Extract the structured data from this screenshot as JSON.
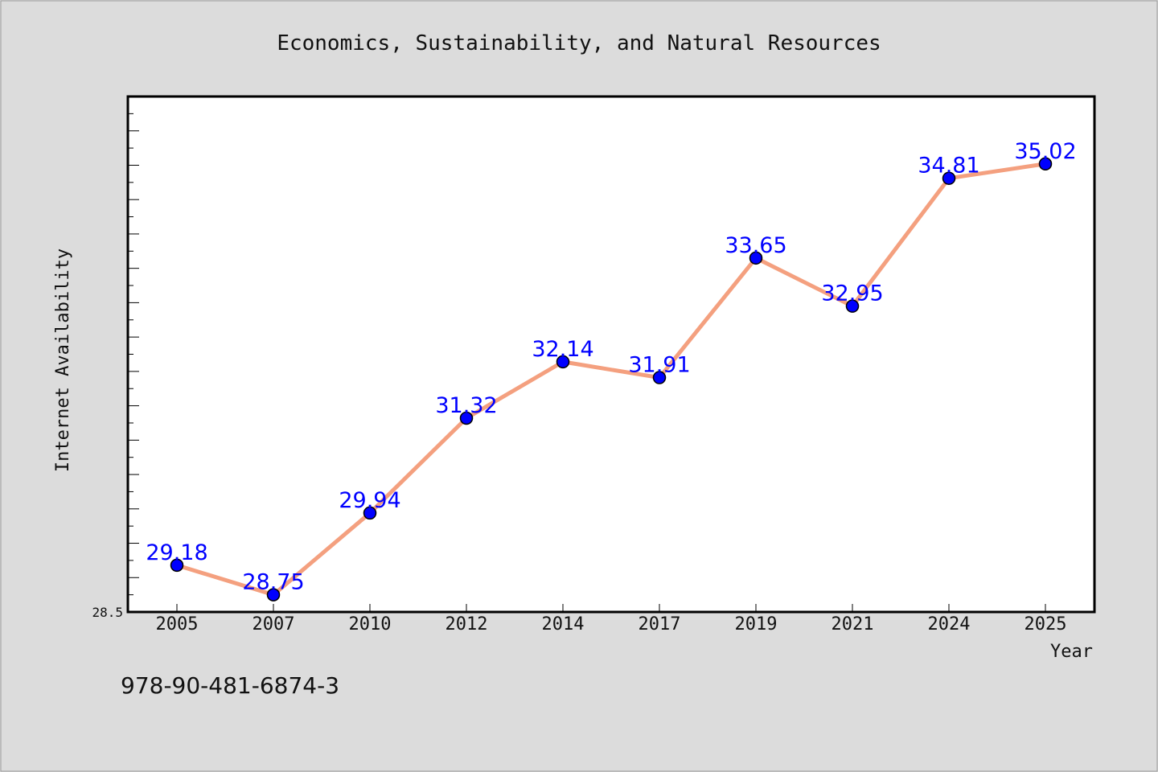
{
  "chart_data": {
    "type": "line",
    "title": "Economics, Sustainability, and Natural Resources",
    "xlabel": "Year",
    "ylabel": "Internet Availability",
    "categories": [
      "2005",
      "2007",
      "2010",
      "2012",
      "2014",
      "2017",
      "2019",
      "2021",
      "2024",
      "2025"
    ],
    "values": [
      29.18,
      28.75,
      29.94,
      31.32,
      32.14,
      31.91,
      33.65,
      32.95,
      34.81,
      35.02
    ],
    "data_labels": [
      "29.18",
      "28.75",
      "29.94",
      "31.32",
      "32.14",
      "31.91",
      "33.65",
      "32.95",
      "34.81",
      "35.02"
    ],
    "ylim": [
      28.5,
      36.0
    ],
    "y_tick_labels": [
      "28.5"
    ],
    "grid": false,
    "legend": "none",
    "line_color": "#f4a07f",
    "marker_color": "#0000ff",
    "label_color": "#0000ff"
  },
  "footer": {
    "isbn": "978-90-481-6874-3"
  },
  "colors": {
    "background": "#dcdcdc",
    "plot_background": "#ffffff"
  }
}
